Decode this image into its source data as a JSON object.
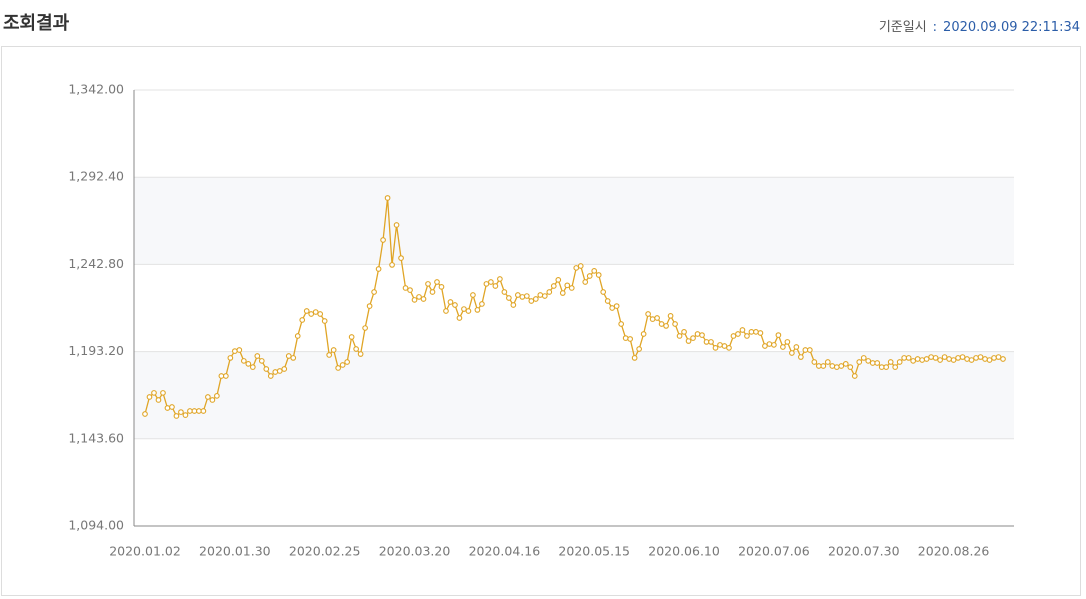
{
  "header": {
    "title": "조회결과",
    "timestamp_label": "기준일시",
    "separator": ":",
    "timestamp": "2020.09.09 22:11:34"
  },
  "chart_data": {
    "type": "line",
    "categories": [
      "2020.01.02",
      null,
      null,
      null,
      null,
      null,
      null,
      null,
      null,
      null,
      null,
      null,
      null,
      null,
      null,
      null,
      null,
      null,
      null,
      null,
      "2020.01.30",
      null,
      null,
      null,
      null,
      null,
      null,
      null,
      null,
      null,
      null,
      null,
      null,
      null,
      null,
      null,
      null,
      null,
      null,
      null,
      "2020.02.25",
      null,
      null,
      null,
      null,
      null,
      null,
      null,
      null,
      null,
      null,
      null,
      null,
      null,
      null,
      null,
      null,
      null,
      null,
      null,
      "2020.03.20",
      null,
      null,
      null,
      null,
      null,
      null,
      null,
      null,
      null,
      null,
      null,
      null,
      null,
      null,
      null,
      null,
      null,
      null,
      null,
      "2020.04.16",
      null,
      null,
      null,
      null,
      null,
      null,
      null,
      null,
      null,
      null,
      null,
      null,
      null,
      null,
      null,
      null,
      null,
      null,
      null,
      "2020.05.15",
      null,
      null,
      null,
      null,
      null,
      null,
      null,
      null,
      null,
      null,
      null,
      null,
      null,
      null,
      null,
      null,
      null,
      null,
      null,
      "2020.06.10",
      null,
      null,
      null,
      null,
      null,
      null,
      null,
      null,
      null,
      null,
      null,
      null,
      null,
      null,
      null,
      null,
      null,
      null,
      null,
      "2020.07.06",
      null,
      null,
      null,
      null,
      null,
      null,
      null,
      null,
      null,
      null,
      null,
      null,
      null,
      null,
      null,
      null,
      null,
      null,
      null,
      "2020.07.30",
      null,
      null,
      null,
      null,
      null,
      null,
      null,
      null,
      null,
      null,
      null,
      null,
      null,
      null,
      null,
      null,
      null,
      null,
      null,
      "2020.08.26",
      null,
      null,
      null,
      null,
      null,
      null,
      null,
      null,
      null,
      null,
      null
    ],
    "values": [
      1157.7,
      1167.4,
      1169.7,
      1165.7,
      1169.7,
      1161.1,
      1161.7,
      1156.6,
      1158.8,
      1157.1,
      1159.4,
      1159.4,
      1159.4,
      1159.4,
      1167.4,
      1165.7,
      1168.0,
      1179.3,
      1179.3,
      1189.6,
      1193.5,
      1194.1,
      1187.9,
      1186.2,
      1184.4,
      1190.7,
      1187.9,
      1183.3,
      1179.3,
      1181.6,
      1182.2,
      1183.3,
      1190.7,
      1189.6,
      1202.1,
      1211.2,
      1216.3,
      1214.6,
      1215.7,
      1214.6,
      1210.6,
      1191.3,
      1194.1,
      1183.9,
      1185.6,
      1187.3,
      1201.5,
      1194.7,
      1191.8,
      1206.6,
      1219.1,
      1227.1,
      1240.2,
      1256.7,
      1280.6,
      1242.5,
      1265.2,
      1246.4,
      1229.4,
      1228.2,
      1222.6,
      1224.3,
      1223.1,
      1231.7,
      1227.1,
      1232.8,
      1230.0,
      1216.3,
      1221.4,
      1219.7,
      1212.3,
      1217.4,
      1216.3,
      1225.4,
      1216.9,
      1220.3,
      1231.7,
      1232.8,
      1230.5,
      1234.5,
      1227.1,
      1223.7,
      1219.7,
      1225.4,
      1224.3,
      1224.8,
      1222.0,
      1223.1,
      1225.4,
      1224.8,
      1227.1,
      1230.5,
      1234.0,
      1226.5,
      1230.9,
      1229.4,
      1240.8,
      1241.9,
      1232.8,
      1236.2,
      1239.1,
      1236.8,
      1227.1,
      1222.0,
      1218.0,
      1219.1,
      1208.9,
      1200.9,
      1200.4,
      1189.6,
      1194.7,
      1203.2,
      1214.6,
      1211.7,
      1212.3,
      1208.9,
      1207.8,
      1213.5,
      1208.9,
      1202.1,
      1204.4,
      1199.2,
      1200.9,
      1203.2,
      1202.6,
      1198.7,
      1198.7,
      1195.3,
      1197.0,
      1196.4,
      1195.3,
      1202.1,
      1203.2,
      1205.5,
      1202.1,
      1204.4,
      1204.4,
      1203.8,
      1196.4,
      1197.5,
      1197.0,
      1202.6,
      1195.8,
      1198.7,
      1192.4,
      1195.8,
      1190.1,
      1194.1,
      1194.1,
      1187.3,
      1185.0,
      1185.0,
      1187.3,
      1185.0,
      1184.4,
      1185.0,
      1186.2,
      1184.4,
      1179.3,
      1187.3,
      1189.6,
      1187.9,
      1186.7,
      1186.7,
      1184.4,
      1184.4,
      1187.3,
      1184.4,
      1187.3,
      1189.6,
      1189.6,
      1187.9,
      1189.0,
      1188.4,
      1189.0,
      1190.1,
      1189.6,
      1188.4,
      1190.1,
      1189.0,
      1188.4,
      1189.6,
      1190.1,
      1189.0,
      1188.4,
      1189.6,
      1190.1,
      1189.0,
      1188.4,
      1189.6,
      1190.1,
      1189.0
    ],
    "color": "#e0a526",
    "ylim": [
      1094,
      1342
    ],
    "yticks": [
      {
        "value": 1094,
        "label": "1,094.00"
      },
      {
        "value": 1143.6,
        "label": "1,143.60"
      },
      {
        "value": 1193.2,
        "label": "1,193.20"
      },
      {
        "value": 1242.8,
        "label": "1,242.80"
      },
      {
        "value": 1292.4,
        "label": "1,292.40"
      },
      {
        "value": 1342,
        "label": "1,342.00"
      }
    ],
    "grid": true
  }
}
